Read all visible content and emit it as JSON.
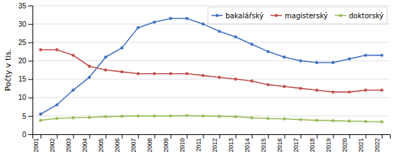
{
  "chart_data": {
    "type": "line",
    "y_label": "Počty v tis.",
    "x": [
      2001,
      2002,
      2003,
      2004,
      2005,
      2006,
      2007,
      2008,
      2009,
      2010,
      2011,
      2012,
      2013,
      2014,
      2015,
      2016,
      2017,
      2018,
      2019,
      2020,
      2021,
      2022
    ],
    "series": [
      {
        "name": "bakalářský",
        "color": "#4472C4",
        "values": [
          5.5,
          8.0,
          12.0,
          15.5,
          21.0,
          23.5,
          29.0,
          30.5,
          31.5,
          31.5,
          30.0,
          28.0,
          26.5,
          24.5,
          22.5,
          21.0,
          20.0,
          19.5,
          19.5,
          20.5,
          21.5,
          21.5
        ]
      },
      {
        "name": "magisterský",
        "color": "#C0504D",
        "values": [
          23.0,
          23.0,
          21.5,
          18.5,
          17.5,
          17.0,
          16.5,
          16.5,
          16.5,
          16.5,
          16.0,
          15.5,
          15.0,
          14.5,
          13.5,
          13.0,
          12.5,
          12.0,
          11.5,
          11.5,
          12.0,
          12.0
        ]
      },
      {
        "name": "doktorský",
        "color": "#9BBB59",
        "values": [
          3.8,
          4.3,
          4.5,
          4.6,
          4.8,
          4.9,
          5.0,
          5.0,
          5.0,
          5.1,
          5.0,
          4.9,
          4.8,
          4.5,
          4.3,
          4.2,
          4.0,
          3.8,
          3.7,
          3.6,
          3.5,
          3.4
        ]
      }
    ],
    "xlim": [
      2000.5,
      2022.5
    ],
    "xticks": [
      2001,
      2002,
      2003,
      2004,
      2005,
      2006,
      2007,
      2008,
      2009,
      2010,
      2011,
      2012,
      2013,
      2014,
      2015,
      2016,
      2017,
      2018,
      2019,
      2020,
      2021,
      2022
    ],
    "ylim": [
      0,
      35
    ],
    "yticks": [
      0,
      5,
      10,
      15,
      20,
      25,
      30,
      35
    ],
    "grid": true,
    "legend": "upper right",
    "marker": "circle",
    "line_style": "solid"
  }
}
